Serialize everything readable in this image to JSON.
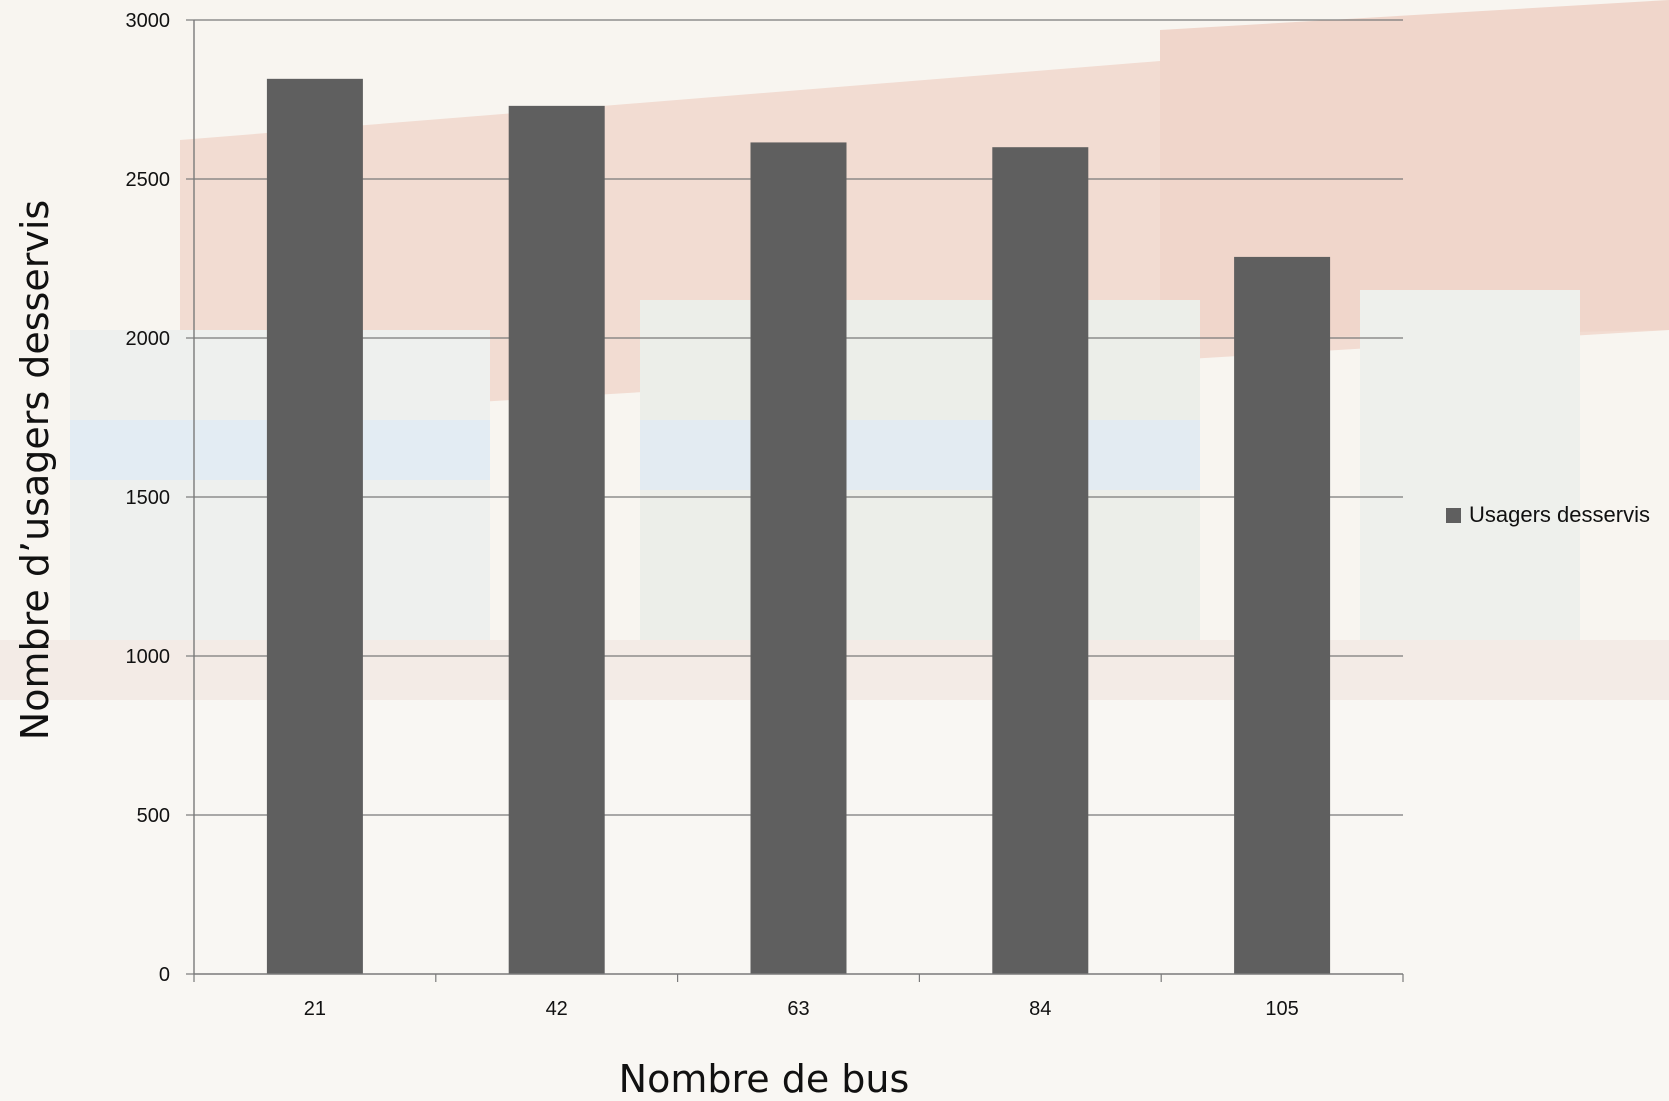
{
  "chart_data": {
    "type": "bar",
    "categories": [
      "21",
      "42",
      "63",
      "84",
      "105"
    ],
    "series": [
      {
        "name": "Usagers desservis",
        "values": [
          2815,
          2730,
          2615,
          2600,
          2255
        ]
      }
    ],
    "xlabel": "Nombre de bus",
    "ylabel": "Nombre d’usagers desservis",
    "ylim": [
      0,
      3000
    ],
    "yticks": [
      "0",
      "500",
      "1000",
      "1500",
      "2000",
      "2500",
      "3000"
    ],
    "grid": true,
    "legend_position": "right",
    "colors": {
      "bar": "#5f5f5f",
      "grid": "#7a7a7a",
      "axis": "#7a7a7a"
    }
  }
}
